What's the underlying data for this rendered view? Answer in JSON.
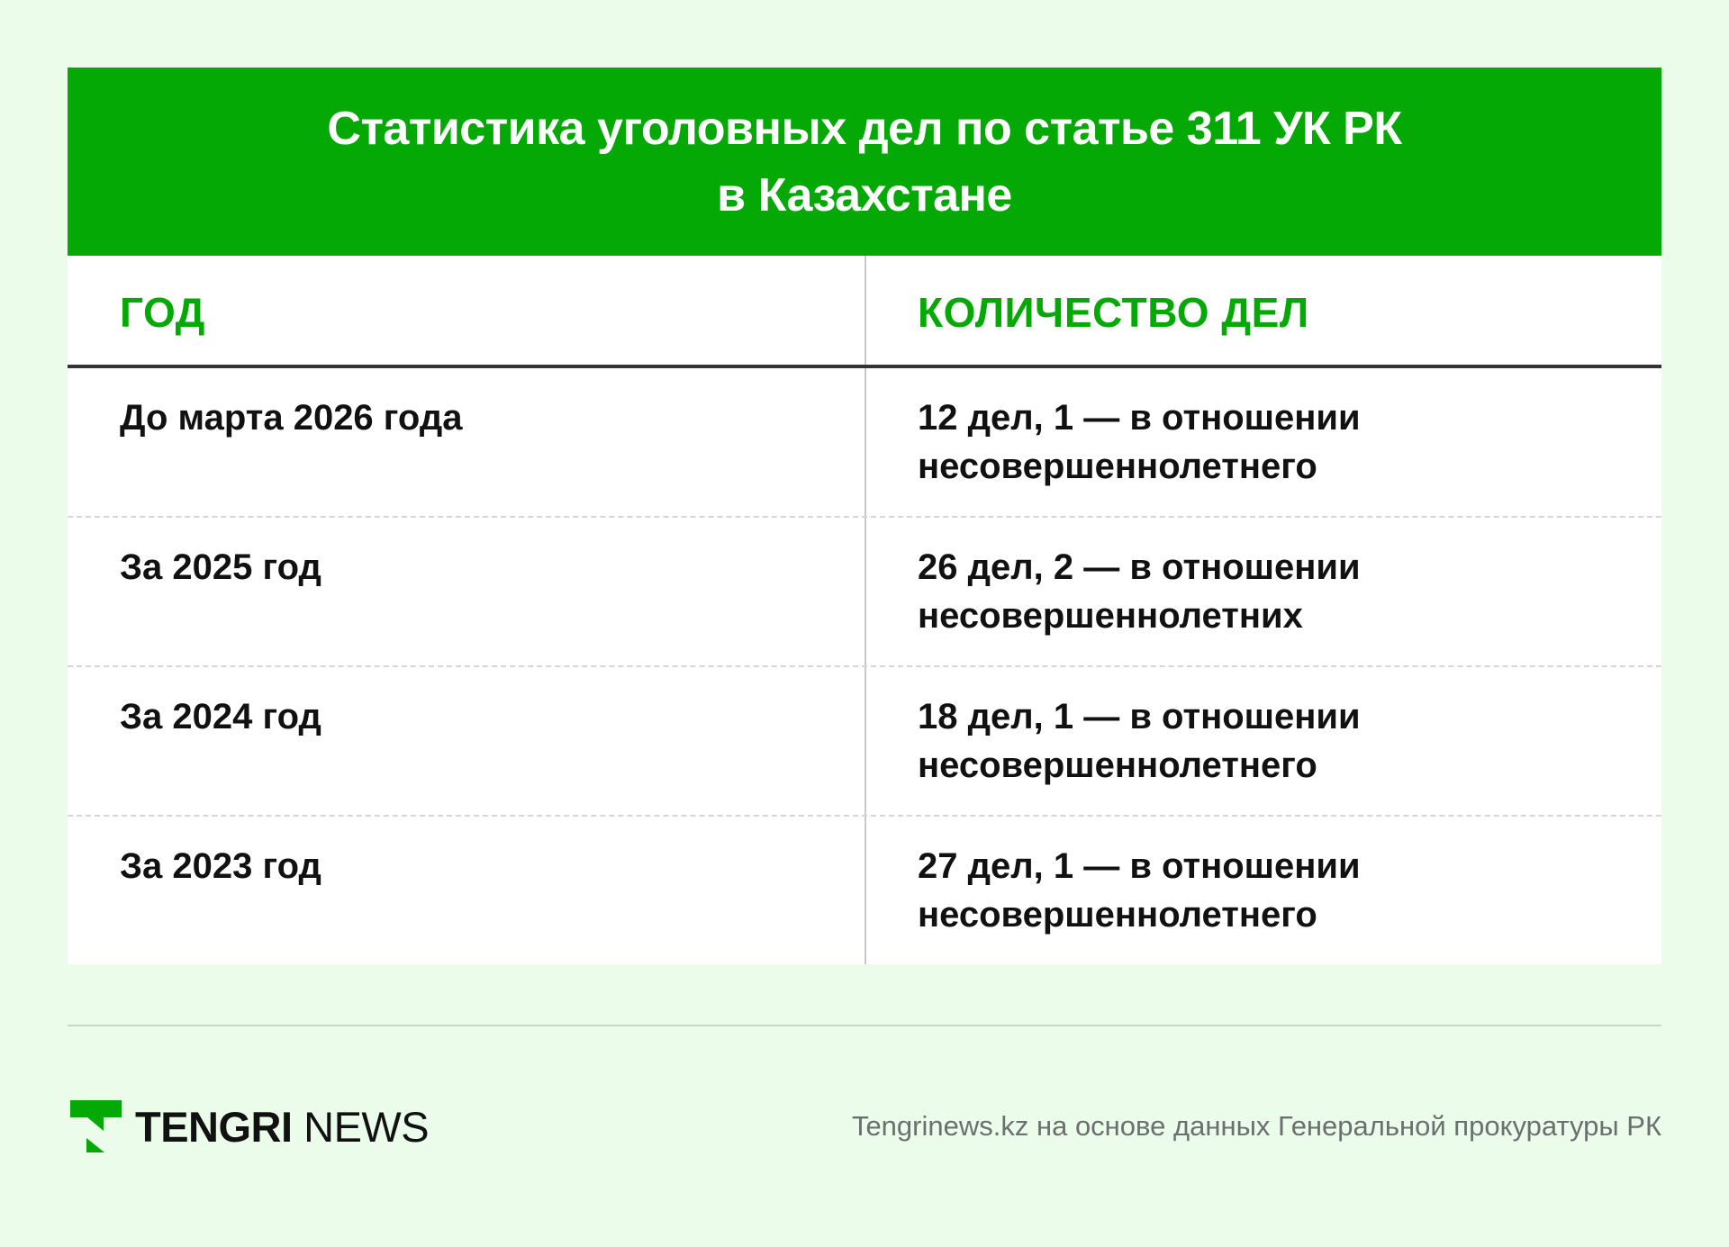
{
  "header": {
    "title_line1": "Статистика уголовных дел по статье 311 УК РК",
    "title_line2": "в Казахстане"
  },
  "table": {
    "columns": [
      "ГОД",
      "КОЛИЧЕСТВО ДЕЛ"
    ],
    "rows": [
      {
        "year": "До марта 2026 года",
        "count_line1": "12 дел, 1 — в отношении",
        "count_line2": "несовершеннолетнего"
      },
      {
        "year": "За 2025 год",
        "count_line1": "26 дел, 2 — в отношении",
        "count_line2": "несовершеннолетних"
      },
      {
        "year": "За 2024 год",
        "count_line1": "18 дел, 1 — в отношении",
        "count_line2": "несовершеннолетнего"
      },
      {
        "year": "За 2023 год",
        "count_line1": "27 дел, 1 — в отношении",
        "count_line2": "несовершеннолетнего"
      }
    ]
  },
  "footer": {
    "logo_bold": "TENGRI",
    "logo_light": "NEWS",
    "source": "Tengrinews.kz на основе данных Генеральной прокуратуры РК"
  },
  "colors": {
    "accent": "#05a905",
    "background": "#ebfdea"
  }
}
